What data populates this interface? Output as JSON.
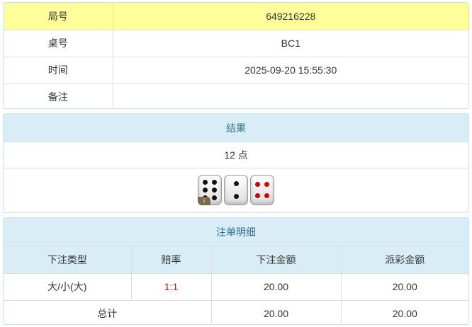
{
  "info": {
    "rows": [
      {
        "label": "局号",
        "value": "649216228"
      },
      {
        "label": "桌号",
        "value": "BC1"
      },
      {
        "label": "时间",
        "value": "2025-09-20 15:55:30"
      },
      {
        "label": "备注",
        "value": ""
      }
    ]
  },
  "result": {
    "title": "结果",
    "points": "12 点",
    "dice": [
      6,
      2,
      4
    ],
    "info_badge": "i"
  },
  "bets": {
    "title": "注单明细",
    "headers": [
      "下注类型",
      "赔率",
      "下注金额",
      "派彩金额"
    ],
    "row": {
      "type": "大/小(大)",
      "odds": "1:1",
      "amount": "20.00",
      "payout": "20.00"
    },
    "total": {
      "label": "总计",
      "amount": "20.00",
      "payout": "20.00"
    }
  },
  "colors": {
    "highlight": "#ffff99",
    "header": "#d9edf7",
    "odds": "#ee0000"
  }
}
